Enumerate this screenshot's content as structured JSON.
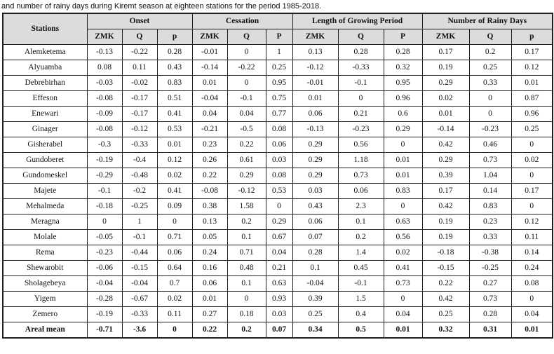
{
  "caption": "and number of rainy days during Kiremt season at eighteen stations for the period 1985-2018.",
  "colors": {
    "header_bg": "#dcdcdc",
    "border": "#1f1f1f",
    "text": "#121212",
    "page_bg": "#ffffff"
  },
  "table": {
    "station_header": "Stations",
    "groups": [
      {
        "label": "Onset",
        "cols": [
          "ZMK",
          "Q",
          "p"
        ]
      },
      {
        "label": "Cessation",
        "cols": [
          "ZMK",
          "Q",
          "P"
        ]
      },
      {
        "label": "Length of Growing Period",
        "cols": [
          "ZMK",
          "Q",
          "P"
        ]
      },
      {
        "label": "Number of Rainy Days",
        "cols": [
          "ZMK",
          "Q",
          "p"
        ]
      }
    ],
    "rows": [
      {
        "station": "Alemketema",
        "bold": false,
        "values": [
          "-0.13",
          "-0.22",
          "0.28",
          "-0.01",
          "0",
          "1",
          "0.13",
          "0.28",
          "0.28",
          "0.17",
          "0.2",
          "0.17"
        ]
      },
      {
        "station": "Alyuamba",
        "bold": false,
        "values": [
          "0.08",
          "0.11",
          "0.43",
          "-0.14",
          "-0.22",
          "0.25",
          "-0.12",
          "-0.33",
          "0.32",
          "0.19",
          "0.25",
          "0.12"
        ]
      },
      {
        "station": "Debrebirhan",
        "bold": false,
        "values": [
          "-0.03",
          "-0.02",
          "0.83",
          "0.01",
          "0",
          "0.95",
          "-0.01",
          "-0.1",
          "0.95",
          "0.29",
          "0.33",
          "0.01"
        ]
      },
      {
        "station": "Effeson",
        "bold": false,
        "values": [
          "-0.08",
          "-0.17",
          "0.51",
          "-0.04",
          "-0.1",
          "0.75",
          "0.01",
          "0",
          "0.96",
          "0.02",
          "0",
          "0.87"
        ]
      },
      {
        "station": "Enewari",
        "bold": false,
        "values": [
          "-0.09",
          "-0.17",
          "0.41",
          "0.04",
          "0.04",
          "0.77",
          "0.06",
          "0.21",
          "0.6",
          "0.01",
          "0",
          "0.96"
        ]
      },
      {
        "station": "Ginager",
        "bold": false,
        "values": [
          "-0.08",
          "-0.12",
          "0.53",
          "-0.21",
          "-0.5",
          "0.08",
          "-0.13",
          "-0.23",
          "0.29",
          "-0.14",
          "-0.23",
          "0.25"
        ]
      },
      {
        "station": "Gisherabel",
        "bold": false,
        "values": [
          "-0.3",
          "-0.33",
          "0.01",
          "0.23",
          "0.22",
          "0.06",
          "0.29",
          "0.56",
          "0",
          "0.42",
          "0.46",
          "0"
        ]
      },
      {
        "station": "Gundoberet",
        "bold": false,
        "values": [
          "-0.19",
          "-0.4",
          "0.12",
          "0.26",
          "0.61",
          "0.03",
          "0.29",
          "1.18",
          "0.01",
          "0.29",
          "0.73",
          "0.02"
        ]
      },
      {
        "station": "Gundomeskel",
        "bold": false,
        "values": [
          "-0.29",
          "-0.48",
          "0.02",
          "0.22",
          "0.29",
          "0.08",
          "0.29",
          "0.73",
          "0.01",
          "0.39",
          "1.04",
          "0"
        ]
      },
      {
        "station": "Majete",
        "bold": false,
        "values": [
          "-0.1",
          "-0.2",
          "0.41",
          "-0.08",
          "-0.12",
          "0.53",
          "0.03",
          "0.06",
          "0.83",
          "0.17",
          "0.14",
          "0.17"
        ]
      },
      {
        "station": "Mehalmeda",
        "bold": false,
        "values": [
          "-0.18",
          "-0.25",
          "0.09",
          "0.38",
          "1.58",
          "0",
          "0.43",
          "2.3",
          "0",
          "0.42",
          "0.83",
          "0"
        ]
      },
      {
        "station": "Meragna",
        "bold": false,
        "values": [
          "0",
          "1",
          "0",
          "0.13",
          "0.2",
          "0.29",
          "0.06",
          "0.1",
          "0.63",
          "0.19",
          "0.23",
          "0.12"
        ]
      },
      {
        "station": "Molale",
        "bold": false,
        "values": [
          "-0.05",
          "-0.1",
          "0.71",
          "0.05",
          "0.1",
          "0.67",
          "0.07",
          "0.2",
          "0.56",
          "0.19",
          "0.33",
          "0.11"
        ]
      },
      {
        "station": "Rema",
        "bold": false,
        "values": [
          "-0.23",
          "-0.44",
          "0.06",
          "0.24",
          "0.71",
          "0.04",
          "0.28",
          "1.4",
          "0.02",
          "-0.18",
          "-0.38",
          "0.14"
        ]
      },
      {
        "station": "Shewarobit",
        "bold": false,
        "values": [
          "-0.06",
          "-0.15",
          "0.64",
          "0.16",
          "0.48",
          "0.21",
          "0.1",
          "0.45",
          "0.41",
          "-0.15",
          "-0.25",
          "0.24"
        ]
      },
      {
        "station": "Sholagebeya",
        "bold": false,
        "values": [
          "-0.04",
          "-0.04",
          "0.7",
          "0.06",
          "0.1",
          "0.63",
          "-0.04",
          "-0.1",
          "0.73",
          "0.22",
          "0.27",
          "0.08"
        ]
      },
      {
        "station": "Yigem",
        "bold": false,
        "values": [
          "-0.28",
          "-0.67",
          "0.02",
          "0.01",
          "0",
          "0.93",
          "0.39",
          "1.5",
          "0",
          "0.42",
          "0.73",
          "0"
        ]
      },
      {
        "station": "Zemero",
        "bold": false,
        "values": [
          "-0.19",
          "-0.33",
          "0.11",
          "0.27",
          "0.18",
          "0.03",
          "0.25",
          "0.4",
          "0.04",
          "0.25",
          "0.28",
          "0.04"
        ]
      },
      {
        "station": "Areal mean",
        "bold": true,
        "values": [
          "-0.71",
          "-3.6",
          "0",
          "0.22",
          "0.2",
          "0.07",
          "0.34",
          "0.5",
          "0.01",
          "0.32",
          "0.31",
          "0.01"
        ]
      }
    ]
  }
}
